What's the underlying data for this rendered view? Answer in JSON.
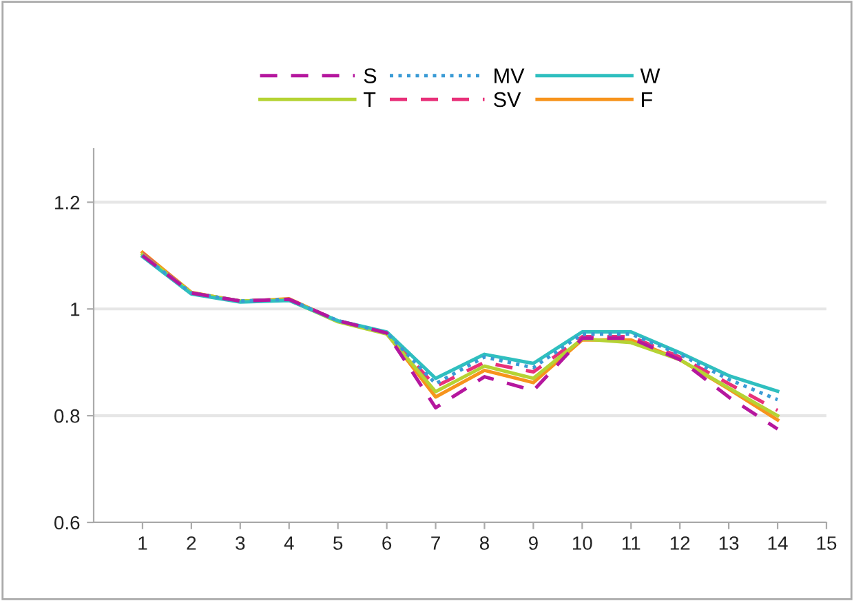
{
  "chart_data": {
    "type": "line",
    "x": [
      1,
      2,
      3,
      4,
      5,
      6,
      7,
      8,
      9,
      10,
      11,
      12,
      13,
      14
    ],
    "series": [
      {
        "name": "S",
        "color": "#b5179e",
        "line_style": "dashed",
        "values": [
          1.1,
          1.03,
          1.015,
          1.018,
          0.978,
          0.955,
          0.815,
          0.873,
          0.847,
          0.945,
          0.945,
          0.905,
          0.835,
          0.775
        ]
      },
      {
        "name": "MV",
        "color": "#3a9bd5",
        "line_style": "dotted",
        "values": [
          1.1,
          1.03,
          1.015,
          1.018,
          0.978,
          0.955,
          0.86,
          0.91,
          0.89,
          0.953,
          0.953,
          0.915,
          0.868,
          0.83
        ]
      },
      {
        "name": "W",
        "color": "#2fbfbf",
        "line_style": "solid",
        "values": [
          1.098,
          1.028,
          1.013,
          1.016,
          0.978,
          0.957,
          0.87,
          0.915,
          0.898,
          0.957,
          0.957,
          0.918,
          0.875,
          0.846
        ]
      },
      {
        "name": "T",
        "color": "#b5d334",
        "line_style": "solid",
        "values": [
          1.102,
          1.03,
          1.015,
          1.017,
          0.976,
          0.953,
          0.845,
          0.893,
          0.87,
          0.944,
          0.937,
          0.905,
          0.852,
          0.8
        ]
      },
      {
        "name": "SV",
        "color": "#e8317a",
        "line_style": "dashed",
        "values": [
          1.104,
          1.03,
          1.015,
          1.018,
          0.978,
          0.955,
          0.855,
          0.9,
          0.882,
          0.948,
          0.948,
          0.91,
          0.86,
          0.81
        ]
      },
      {
        "name": "F",
        "color": "#f7941d",
        "line_style": "solid",
        "values": [
          1.106,
          1.031,
          1.014,
          1.019,
          0.977,
          0.954,
          0.835,
          0.885,
          0.862,
          0.942,
          0.942,
          0.905,
          0.85,
          0.792
        ]
      }
    ],
    "xlim": [
      0,
      15
    ],
    "xticks": [
      1,
      2,
      3,
      4,
      5,
      6,
      7,
      8,
      9,
      10,
      11,
      12,
      13,
      14,
      15
    ],
    "ylim": [
      0.6,
      1.3
    ],
    "yticks": [
      0.6,
      0.8,
      1,
      1.2
    ],
    "grid": "y",
    "legend": "top",
    "marker": "none"
  }
}
